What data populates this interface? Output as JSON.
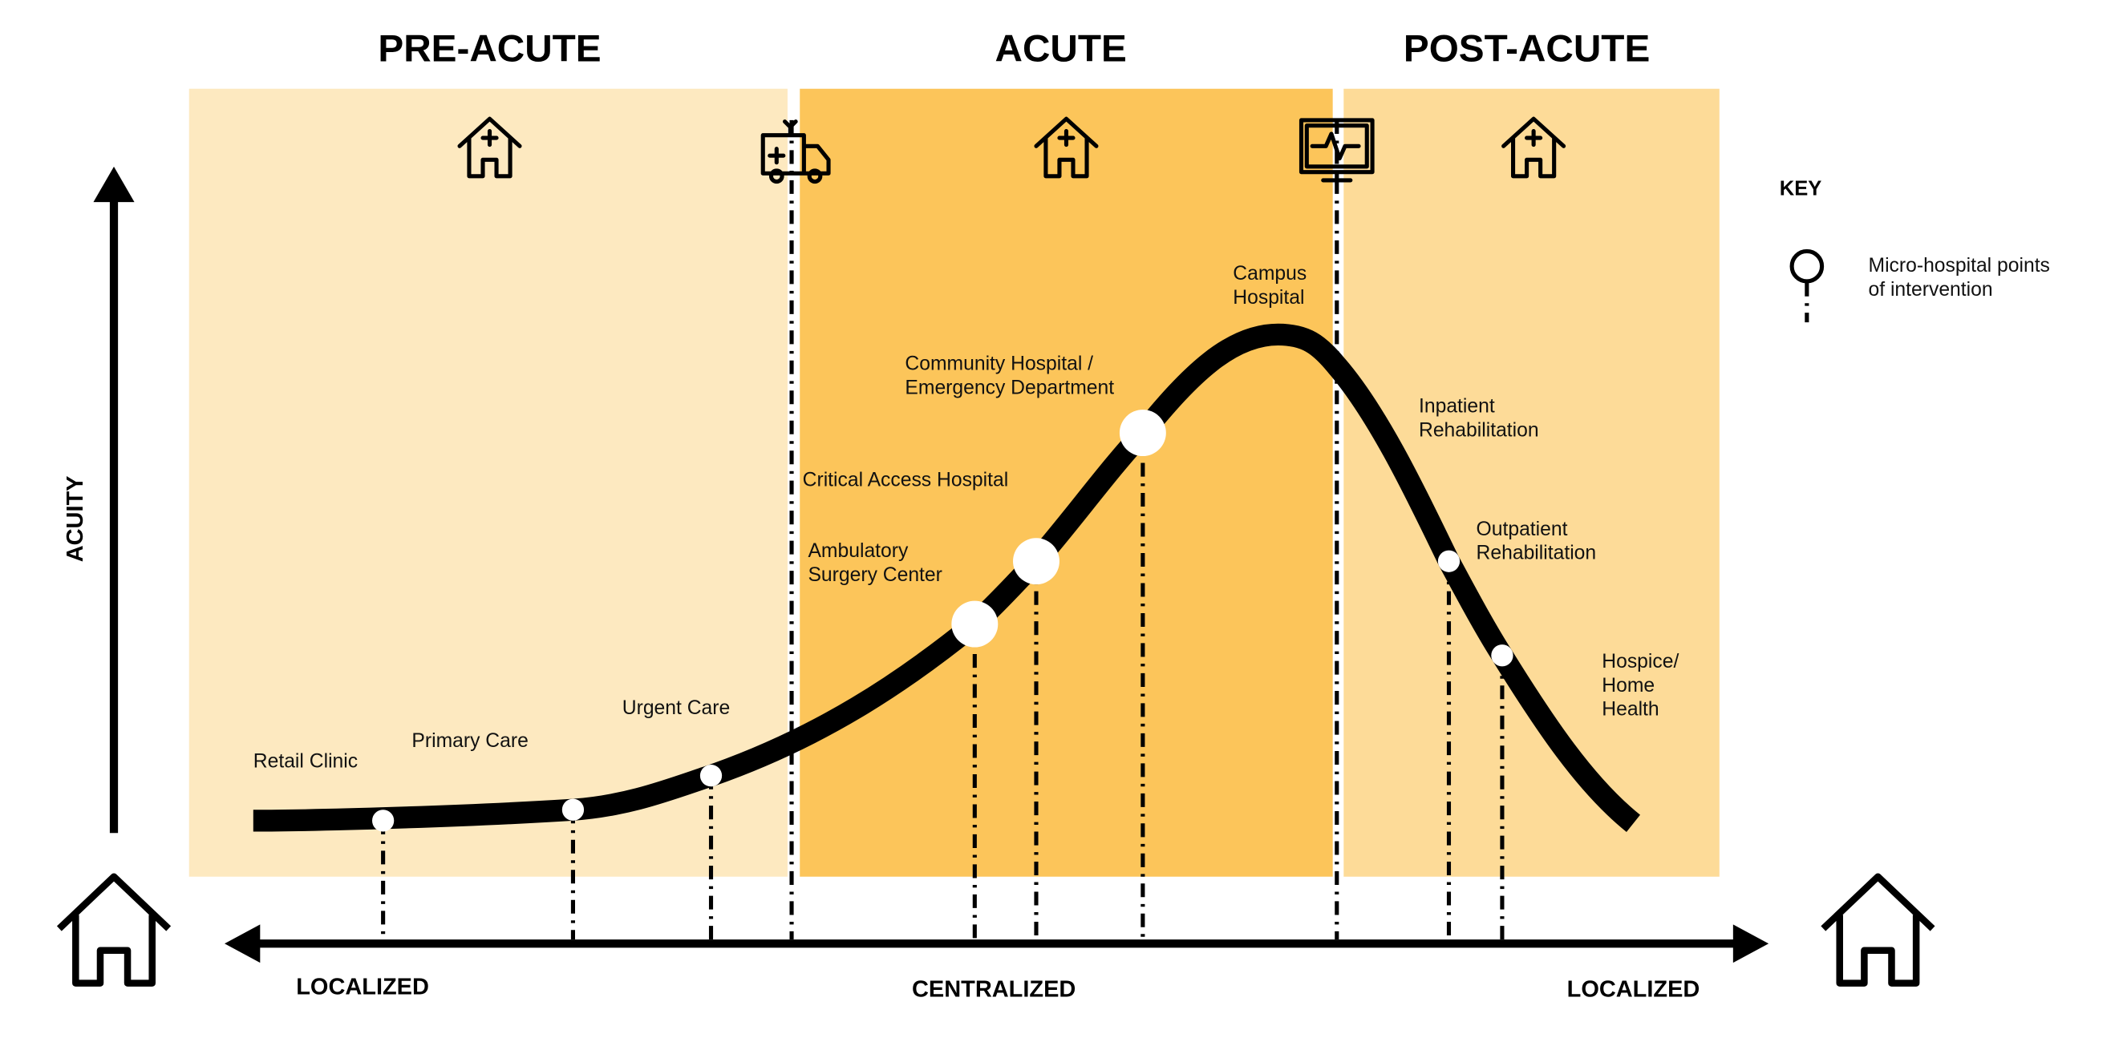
{
  "phases": [
    {
      "title": "PRE-ACUTE"
    },
    {
      "title": "ACUTE"
    },
    {
      "title": "POST-ACUTE"
    }
  ],
  "axis": {
    "y_label": "ACUITY",
    "x_labels": [
      "LOCALIZED",
      "CENTRALIZED",
      "LOCALIZED"
    ]
  },
  "points": [
    {
      "lines": [
        "Retail Clinic"
      ]
    },
    {
      "lines": [
        "Primary Care"
      ]
    },
    {
      "lines": [
        "Urgent Care"
      ]
    },
    {
      "lines": [
        "Critical Access Hospital"
      ]
    },
    {
      "lines": [
        "Ambulatory",
        "Surgery Center"
      ]
    },
    {
      "lines": [
        "Community Hospital /",
        "Emergency Department"
      ]
    },
    {
      "lines": [
        "Campus",
        "Hospital"
      ]
    },
    {
      "lines": [
        "Inpatient",
        "Rehabilitation"
      ]
    },
    {
      "lines": [
        "Outpatient",
        "Rehabilitation"
      ]
    },
    {
      "lines": [
        "Hospice/",
        "Home",
        "Health"
      ]
    }
  ],
  "key": {
    "title": "KEY",
    "lines": [
      "Micro-hospital points",
      "of intervention"
    ]
  }
}
